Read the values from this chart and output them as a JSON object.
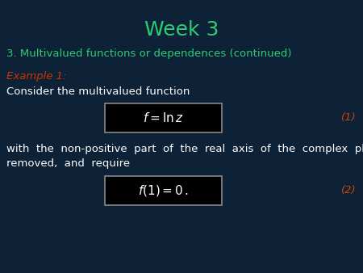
{
  "title": "Week 3",
  "title_color": "#2ecc71",
  "title_fontsize": 18,
  "bg_color": "#0d2137",
  "subtitle": "3. Multivalued functions or dependences (continued)",
  "subtitle_color": "#2ecc71",
  "subtitle_fontsize": 9.5,
  "example_label": "Example 1:",
  "example_color": "#cc3300",
  "example_fontsize": 9.5,
  "body_text1": "Consider the multivalued function",
  "body_color": "#ffffff",
  "body_fontsize": 9.5,
  "eq1_latex": "$f = \\ln z$",
  "eq1_label": "(1)",
  "eq2_latex": "$f(1) = 0\\,.$",
  "eq2_label": "(2)",
  "body_text2_line1": "with  the  non-positive  part  of  the  real  axis  of  the  complex  plane",
  "body_text2_line2": "removed,  and  require",
  "eq_label_color": "#cc4400",
  "eq_label_fontsize": 9.5,
  "box_bg": "#000000",
  "box_edge": "#888888"
}
